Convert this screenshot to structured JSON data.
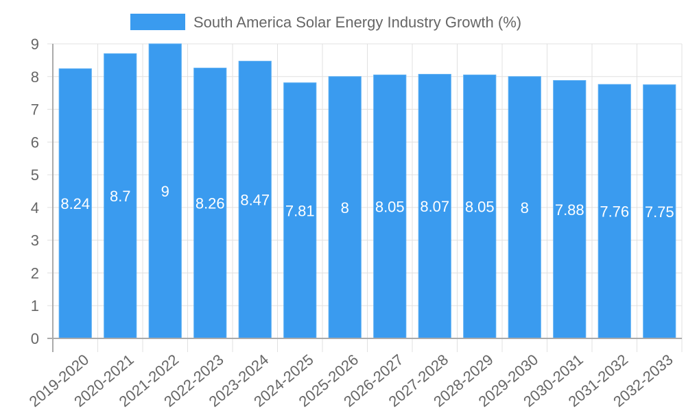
{
  "chart_data": {
    "type": "bar",
    "title": "",
    "xlabel": "",
    "ylabel": "",
    "categories": [
      "2019-2020",
      "2020-2021",
      "2021-2022",
      "2022-2023",
      "2023-2024",
      "2024-2025",
      "2025-2026",
      "2026-2027",
      "2027-2028",
      "2028-2029",
      "2029-2030",
      "2030-2031",
      "2031-2032",
      "2032-2033"
    ],
    "series": [
      {
        "name": "South America Solar Energy Industry Growth (%)",
        "color": "#3a9bef",
        "values": [
          8.24,
          8.7,
          9,
          8.26,
          8.47,
          7.81,
          8,
          8.05,
          8.07,
          8.05,
          8,
          7.88,
          7.76,
          7.75
        ],
        "labels": [
          "8.24",
          "8.7",
          "9",
          "8.26",
          "8.47",
          "7.81",
          "8",
          "8.05",
          "8.07",
          "8.05",
          "8",
          "7.88",
          "7.76",
          "7.75"
        ]
      }
    ],
    "ylim": [
      0,
      9
    ],
    "yticks": [
      "0",
      "1",
      "2",
      "3",
      "4",
      "5",
      "6",
      "7",
      "8",
      "9"
    ],
    "grid": true,
    "legend_position": "top-center"
  }
}
